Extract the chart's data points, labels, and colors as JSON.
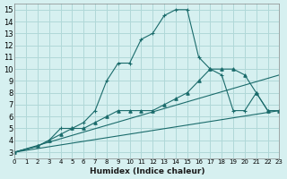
{
  "xlabel": "Humidex (Indice chaleur)",
  "bg_color": "#d6f0f0",
  "grid_color": "#b0d8d8",
  "line_color": "#1a6b6b",
  "xlim": [
    0,
    23
  ],
  "ylim": [
    2.5,
    15.5
  ],
  "xticks": [
    0,
    1,
    2,
    3,
    4,
    5,
    6,
    7,
    8,
    9,
    10,
    11,
    12,
    13,
    14,
    15,
    16,
    17,
    18,
    19,
    20,
    21,
    22,
    23
  ],
  "yticks": [
    3,
    4,
    5,
    6,
    7,
    8,
    9,
    10,
    11,
    12,
    13,
    14,
    15
  ],
  "series0_x": [
    0,
    2,
    3,
    4,
    5,
    6,
    7,
    8,
    9,
    10,
    11,
    12,
    13,
    14,
    15,
    16,
    17,
    18,
    19,
    20,
    21,
    22,
    23
  ],
  "series0_y": [
    3,
    3.5,
    4,
    5,
    5,
    5.5,
    6.5,
    9,
    10.5,
    10.5,
    12.5,
    13,
    14.5,
    15,
    15,
    11,
    10,
    9.5,
    6.5,
    6.5,
    8,
    6.5,
    6.5
  ],
  "series1_x": [
    0,
    2,
    3,
    4,
    5,
    6,
    7,
    8,
    9,
    10,
    11,
    12,
    13,
    14,
    15,
    16,
    17,
    18,
    19,
    20,
    21,
    22,
    23
  ],
  "series1_y": [
    3,
    3.5,
    4,
    4.5,
    5,
    5,
    5.5,
    6,
    6.5,
    6.5,
    6.5,
    6.5,
    7,
    7.5,
    8,
    9,
    10,
    10,
    10,
    9.5,
    8,
    6.5,
    6.5
  ],
  "series2_x": [
    0,
    23
  ],
  "series2_y": [
    3,
    9.5
  ],
  "series3_x": [
    0,
    23
  ],
  "series3_y": [
    3,
    6.5
  ]
}
